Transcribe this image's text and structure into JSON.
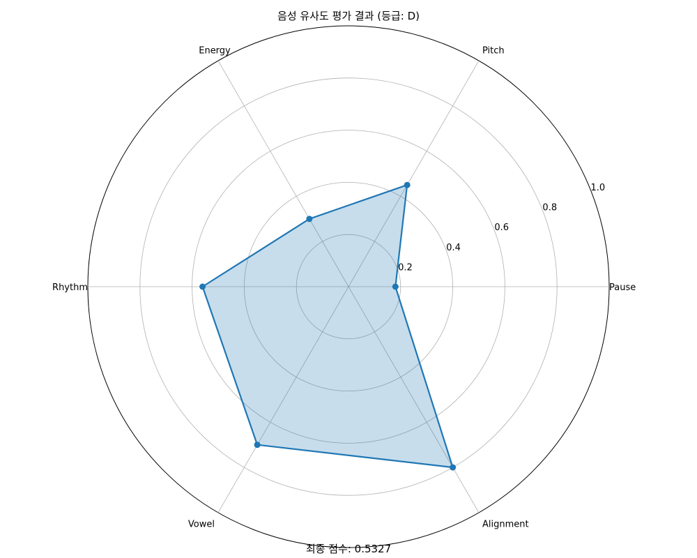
{
  "chart_data": {
    "type": "radar",
    "title": "음성 유사도 평가 결과 (등급: D)",
    "footer": "최종 점수: 0.5327",
    "axes": [
      "Pause",
      "Pitch",
      "Energy",
      "Rhythm",
      "Vowel",
      "Alignment"
    ],
    "rlim": [
      0,
      1.0
    ],
    "rticks": [
      {
        "value": 0.2,
        "label": "0.2"
      },
      {
        "value": 0.4,
        "label": "0.4"
      },
      {
        "value": 0.6,
        "label": "0.6"
      },
      {
        "value": 0.8,
        "label": "0.8"
      },
      {
        "value": 1.0,
        "label": "1.0"
      }
    ],
    "grid": true,
    "series": [
      {
        "values": [
          0.18,
          0.45,
          0.3,
          0.56,
          0.7,
          0.8
        ],
        "color": "#1f77b4",
        "fill_color": "#1f77b4",
        "fill_opacity": 0.25
      }
    ]
  }
}
